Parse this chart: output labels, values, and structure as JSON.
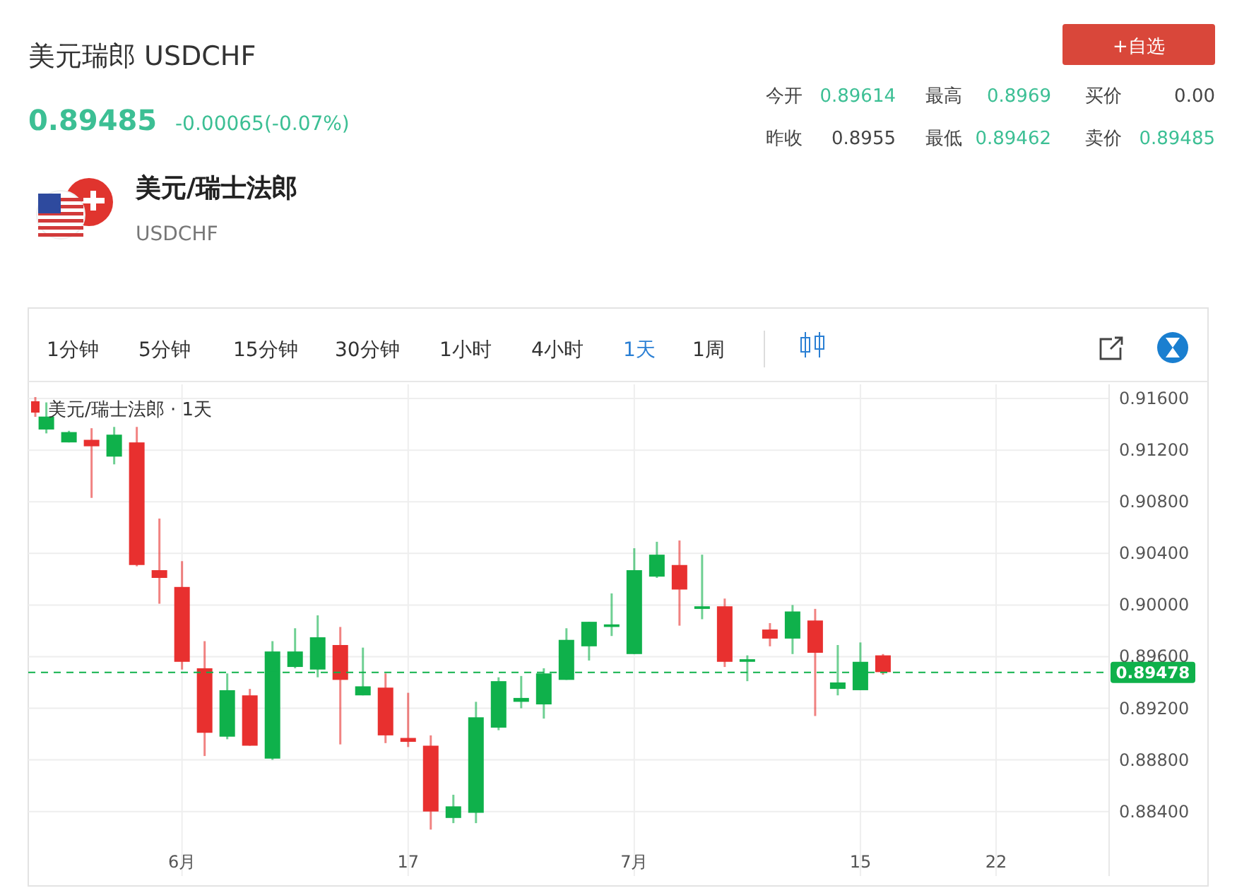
{
  "chart_data": {
    "type": "candlestick",
    "title": "美元瑞郎 USDCHF",
    "categories": [
      null,
      null,
      null,
      null,
      null,
      null,
      "6月",
      null,
      null,
      null,
      null,
      null,
      null,
      null,
      null,
      null,
      "17",
      null,
      null,
      null,
      null,
      null,
      null,
      null,
      null,
      null,
      "7月",
      null,
      null,
      null,
      null,
      null,
      null,
      null,
      null,
      null,
      "15",
      null,
      null,
      null,
      null,
      null,
      "22",
      null,
      null,
      null,
      null
    ],
    "series": [
      {
        "name": "美元/瑞士法郎 · 1天",
        "ohlc": [
          [
            0.9136,
            0.9157,
            0.9133,
            0.9146
          ],
          [
            0.9126,
            0.9135,
            0.9126,
            0.9134
          ],
          [
            0.9128,
            0.9137,
            0.9083,
            0.9123
          ],
          [
            0.9115,
            0.9138,
            0.9109,
            0.9132
          ],
          [
            0.9126,
            0.9138,
            0.903,
            0.9031
          ],
          [
            0.9027,
            0.9067,
            0.9001,
            0.9021
          ],
          [
            0.9014,
            0.9034,
            0.895,
            0.8956
          ],
          [
            0.8951,
            0.8972,
            0.8883,
            0.8901
          ],
          [
            0.8898,
            0.8947,
            0.8896,
            0.8934
          ],
          [
            0.893,
            0.8935,
            0.8891,
            0.8891
          ],
          [
            0.8881,
            0.8972,
            0.888,
            0.8964
          ],
          [
            0.8952,
            0.8982,
            0.8951,
            0.8964
          ],
          [
            0.895,
            0.8992,
            0.8944,
            0.8975
          ],
          [
            0.8969,
            0.8983,
            0.8892,
            0.8942
          ],
          [
            0.893,
            0.8967,
            0.893,
            0.8937
          ],
          [
            0.8936,
            0.8947,
            0.8893,
            0.8899
          ],
          [
            0.8897,
            0.8932,
            0.889,
            0.8894
          ],
          [
            0.8891,
            0.8899,
            0.8826,
            0.884
          ],
          [
            0.8835,
            0.8853,
            0.8831,
            0.8844
          ],
          [
            0.8839,
            0.8925,
            0.8831,
            0.8913
          ],
          [
            0.8905,
            0.8944,
            0.8903,
            0.8941
          ],
          [
            0.8925,
            0.8945,
            0.892,
            0.8928
          ],
          [
            0.8923,
            0.8951,
            0.8912,
            0.8947
          ],
          [
            0.8942,
            0.8982,
            0.8942,
            0.8973
          ],
          [
            0.8968,
            0.8987,
            0.8957,
            0.8987
          ],
          [
            0.8983,
            0.9009,
            0.8976,
            0.8985
          ],
          [
            0.8962,
            0.9044,
            0.8962,
            0.9027
          ],
          [
            0.9022,
            0.9049,
            0.9021,
            0.9039
          ],
          [
            0.9031,
            0.905,
            0.8984,
            0.9012
          ],
          [
            0.8997,
            0.9039,
            0.8989,
            0.8999
          ],
          [
            0.8999,
            0.9005,
            0.8952,
            0.8956
          ],
          [
            0.8956,
            0.8961,
            0.8941,
            0.8958
          ],
          [
            0.8981,
            0.8986,
            0.8968,
            0.8974
          ],
          [
            0.8974,
            0.9,
            0.8962,
            0.8995
          ],
          [
            0.8988,
            0.8997,
            0.8914,
            0.8963
          ],
          [
            0.8935,
            0.8969,
            0.893,
            0.894
          ],
          [
            0.8934,
            0.8971,
            0.8934,
            0.8956
          ],
          [
            0.8961,
            0.8962,
            0.8946,
            0.8948
          ],
          null,
          null,
          null,
          null,
          null,
          null,
          null,
          null,
          null
        ]
      }
    ],
    "ylim": [
      0.879,
      0.9171
    ],
    "yticks": [
      {
        "value": 0.884,
        "label": "0.88400"
      },
      {
        "value": 0.888,
        "label": "0.88800"
      },
      {
        "value": 0.892,
        "label": "0.89200"
      },
      {
        "value": 0.896,
        "label": "0.89600"
      },
      {
        "value": 0.9,
        "label": "0.90000"
      },
      {
        "value": 0.904,
        "label": "0.90400"
      },
      {
        "value": 0.908,
        "label": "0.90800"
      },
      {
        "value": 0.912,
        "label": "0.91200"
      },
      {
        "value": 0.916,
        "label": "0.91600"
      }
    ],
    "grid": true,
    "legend": "top left",
    "ref_lines": [
      {
        "axis": "y",
        "value": 0.89478,
        "label": "0.89478",
        "color": "#0fb14b",
        "line_style": "dashed"
      }
    ],
    "annotations": [
      "0.89485",
      "-0.00065(-0.07%)",
      "今开",
      "0.89614",
      "最高",
      "0.8969",
      "买价",
      "0.00",
      "昨收",
      "0.8955",
      "最低",
      "0.89462",
      "卖价",
      "0.89485",
      "美元/瑞士法郎",
      "USDCHF",
      "+自选",
      "1分钟",
      "5分钟",
      "15分钟",
      "30分钟",
      "1小时",
      "4小时",
      "1天",
      "1周"
    ]
  }
}
